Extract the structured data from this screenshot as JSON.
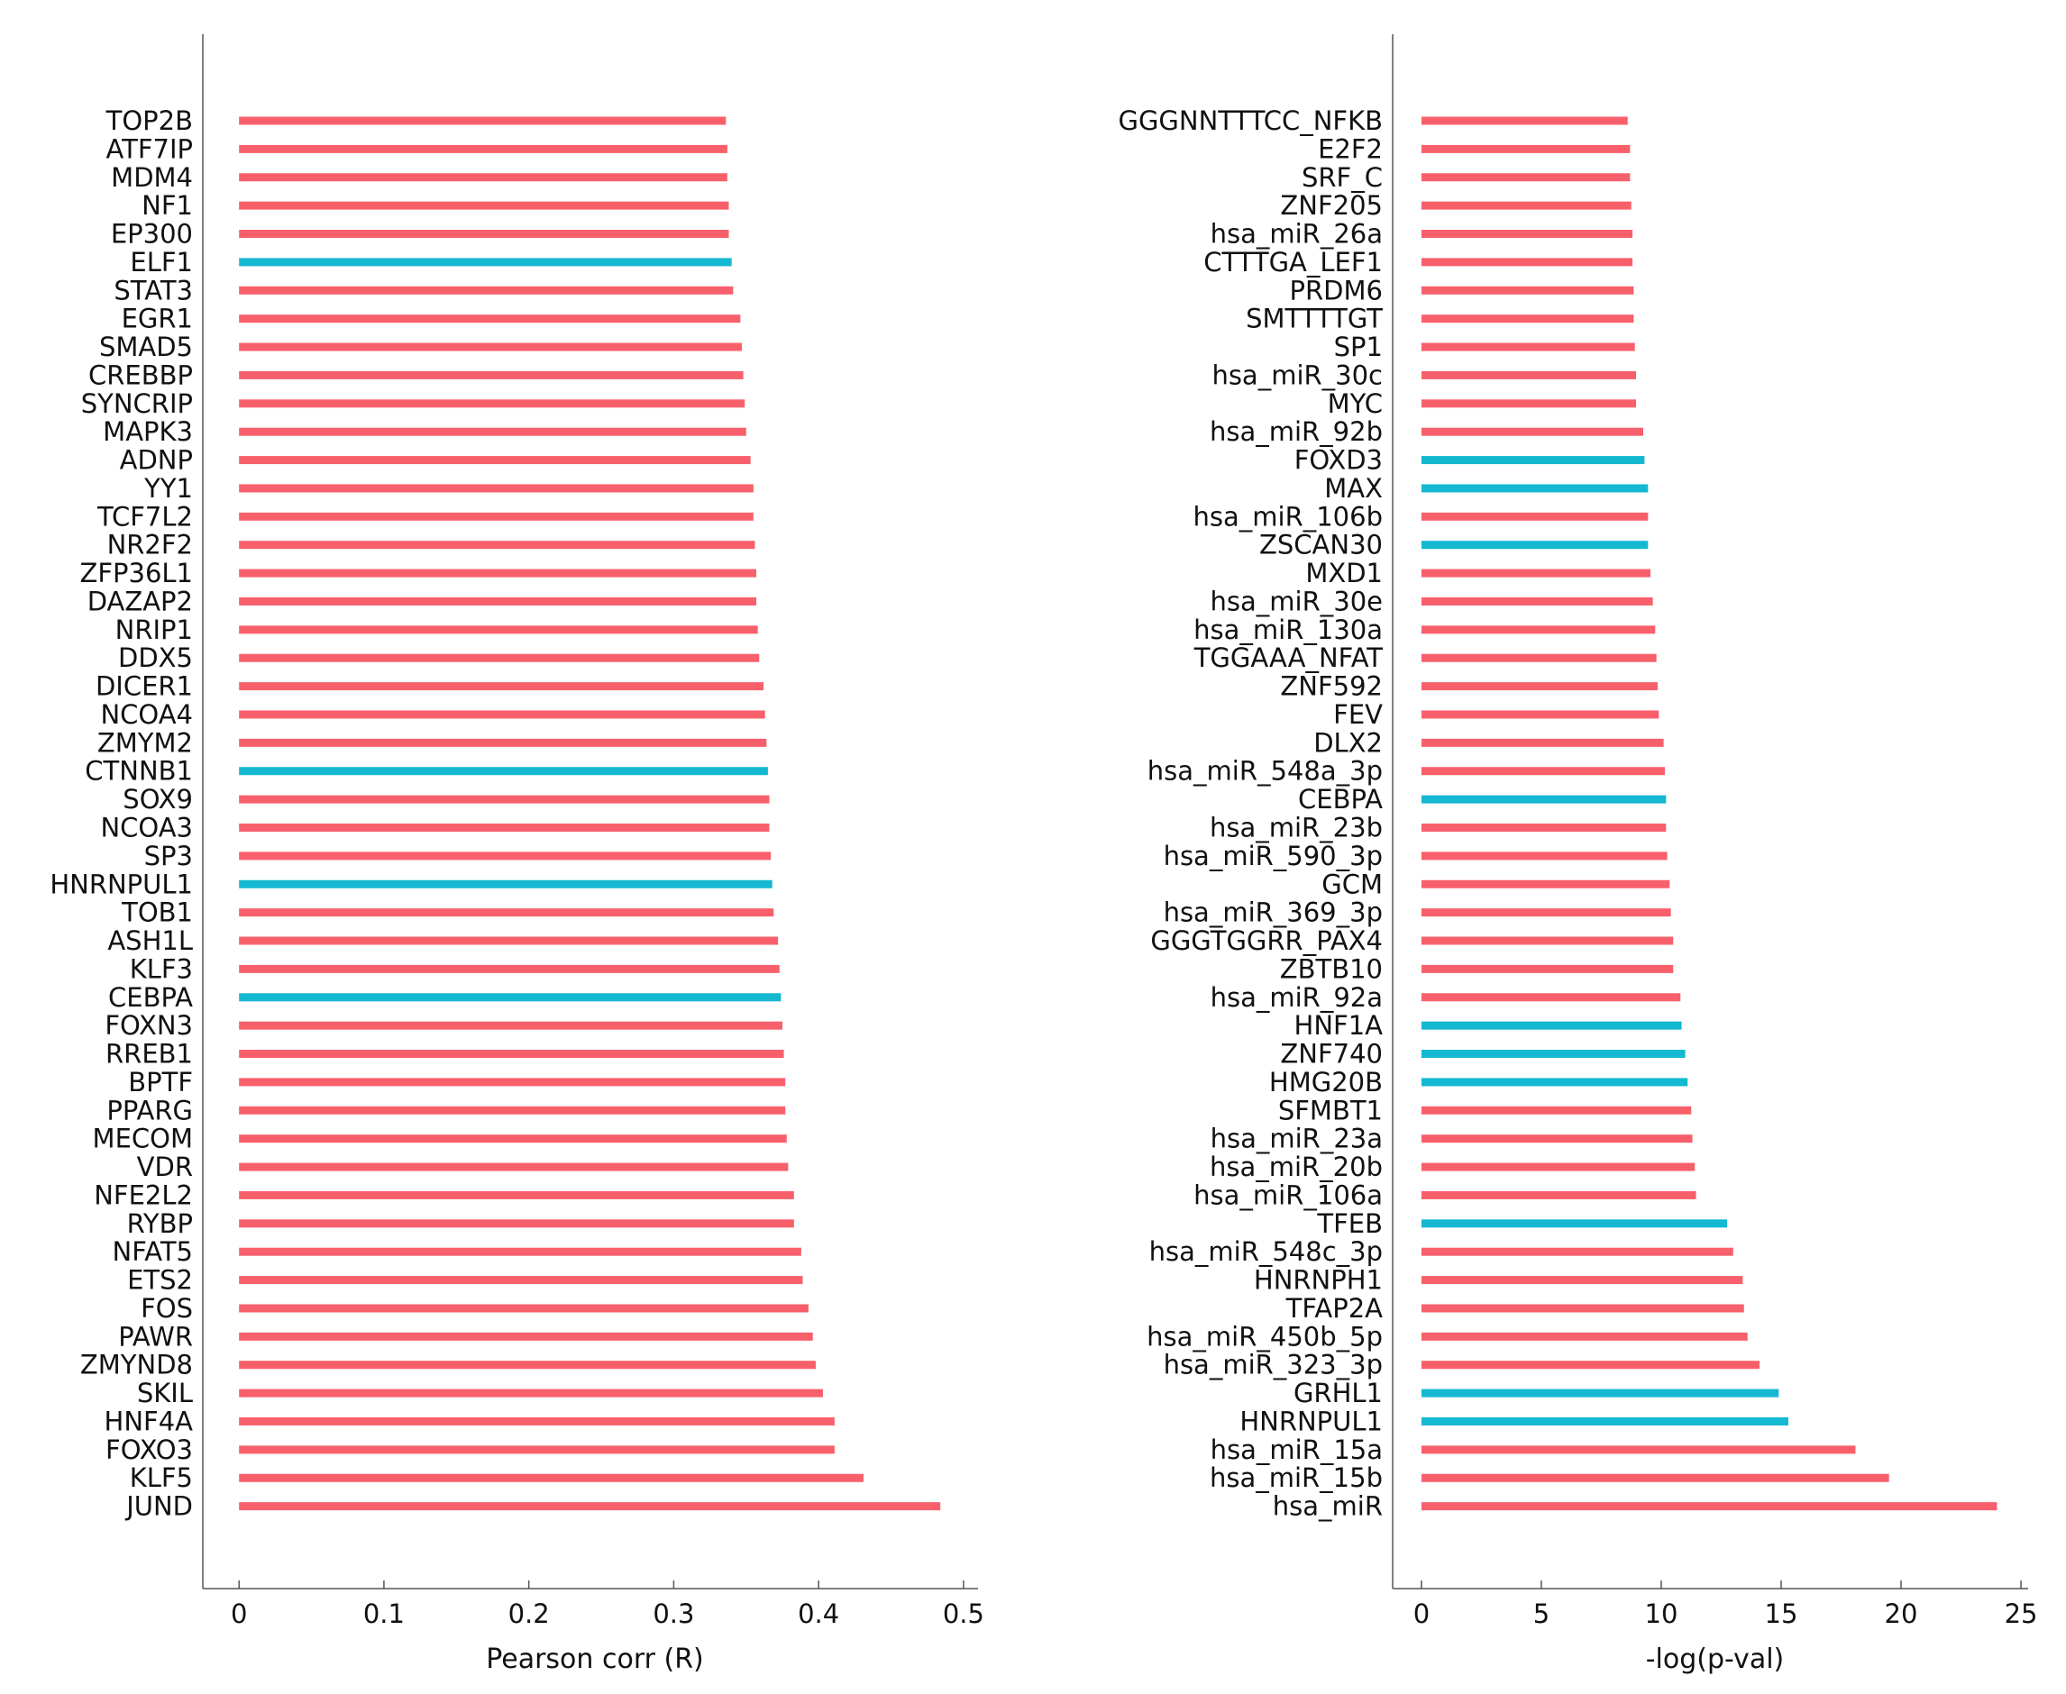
{
  "colors": {
    "red": "#f7606b",
    "cyan": "#14b8d1",
    "axis": "#555555"
  },
  "chart_data": [
    {
      "type": "bar",
      "orientation": "horizontal",
      "xlabel": "Pearson corr (R)",
      "xlim": [
        -0.025,
        0.51
      ],
      "xticks": [
        0,
        0.1,
        0.2,
        0.3,
        0.4,
        0.5
      ],
      "xtick_labels": [
        "0",
        "0.1",
        "0.2",
        "0.3",
        "0.4",
        "0.5"
      ],
      "categories": [
        "TOP2B",
        "ATF7IP",
        "MDM4",
        "NF1",
        "EP300",
        "ELF1",
        "STAT3",
        "EGR1",
        "SMAD5",
        "CREBBP",
        "SYNCRIP",
        "MAPK3",
        "ADNP",
        "YY1",
        "TCF7L2",
        "NR2F2",
        "ZFP36L1",
        "DAZAP2",
        "NRIP1",
        "DDX5",
        "DICER1",
        "NCOA4",
        "ZMYM2",
        "CTNNB1",
        "SOX9",
        "NCOA3",
        "SP3",
        "HNRNPUL1",
        "TOB1",
        "ASH1L",
        "KLF3",
        "CEBPA",
        "FOXN3",
        "RREB1",
        "BPTF",
        "PPARG",
        "MECOM",
        "VDR",
        "NFE2L2",
        "RYBP",
        "NFAT5",
        "ETS2",
        "FOS",
        "PAWR",
        "ZMYND8",
        "SKIL",
        "HNF4A",
        "FOXO3",
        "KLF5",
        "JUND"
      ],
      "values": [
        0.336,
        0.337,
        0.337,
        0.338,
        0.338,
        0.34,
        0.341,
        0.346,
        0.347,
        0.348,
        0.349,
        0.35,
        0.353,
        0.355,
        0.355,
        0.356,
        0.357,
        0.357,
        0.358,
        0.359,
        0.362,
        0.363,
        0.364,
        0.365,
        0.366,
        0.366,
        0.367,
        0.368,
        0.369,
        0.372,
        0.373,
        0.374,
        0.375,
        0.376,
        0.377,
        0.377,
        0.378,
        0.379,
        0.383,
        0.383,
        0.388,
        0.389,
        0.393,
        0.396,
        0.398,
        0.403,
        0.411,
        0.411,
        0.431,
        0.484
      ],
      "groups": [
        "red",
        "red",
        "red",
        "red",
        "red",
        "cyan",
        "red",
        "red",
        "red",
        "red",
        "red",
        "red",
        "red",
        "red",
        "red",
        "red",
        "red",
        "red",
        "red",
        "red",
        "red",
        "red",
        "red",
        "cyan",
        "red",
        "red",
        "red",
        "cyan",
        "red",
        "red",
        "red",
        "cyan",
        "red",
        "red",
        "red",
        "red",
        "red",
        "red",
        "red",
        "red",
        "red",
        "red",
        "red",
        "red",
        "red",
        "red",
        "red",
        "red",
        "red",
        "red"
      ]
    },
    {
      "type": "bar",
      "orientation": "horizontal",
      "xlabel": "-log(p-val)",
      "xlim": [
        -1.2,
        25.3
      ],
      "xticks": [
        0,
        5,
        10,
        15,
        20,
        25
      ],
      "xtick_labels": [
        "0",
        "5",
        "10",
        "15",
        "20",
        "25"
      ],
      "categories": [
        "GGGNNTTTCC_NFKB",
        "E2F2",
        "SRF_C",
        "ZNF205",
        "hsa_miR_26a",
        "CTTTGA_LEF1",
        "PRDM6",
        "SMTTTTGT",
        "SP1",
        "hsa_miR_30c",
        "MYC",
        "hsa_miR_92b",
        "FOXD3",
        "MAX",
        "hsa_miR_106b",
        "ZSCAN30",
        "MXD1",
        "hsa_miR_30e",
        "hsa_miR_130a",
        "TGGAAA_NFAT",
        "ZNF592",
        "FEV",
        "DLX2",
        "hsa_miR_548a_3p",
        "CEBPA",
        "hsa_miR_23b",
        "hsa_miR_590_3p",
        "GCM",
        "hsa_miR_369_3p",
        "GGGTGGRR_PAX4",
        "ZBTB10",
        "hsa_miR_92a",
        "HNF1A",
        "ZNF740",
        "HMG20B",
        "SFMBT1",
        "hsa_miR_23a",
        "hsa_miR_20b",
        "hsa_miR_106a",
        "TFEB",
        "hsa_miR_548c_3p",
        "HNRNPH1",
        "TFAP2A",
        "hsa_miR_450b_5p",
        "hsa_miR_323_3p",
        "GRHL1",
        "HNRNPUL1",
        "hsa_miR_15a",
        "hsa_miR_15b",
        "hsa_miR"
      ],
      "values": [
        8.6,
        8.7,
        8.7,
        8.75,
        8.8,
        8.8,
        8.85,
        8.85,
        8.9,
        8.95,
        8.95,
        9.25,
        9.3,
        9.45,
        9.45,
        9.45,
        9.55,
        9.65,
        9.75,
        9.8,
        9.85,
        9.9,
        10.1,
        10.15,
        10.2,
        10.2,
        10.25,
        10.35,
        10.4,
        10.5,
        10.5,
        10.8,
        10.85,
        11.0,
        11.1,
        11.25,
        11.3,
        11.4,
        11.45,
        12.75,
        13.0,
        13.4,
        13.45,
        13.6,
        14.1,
        14.9,
        15.3,
        18.1,
        19.5,
        24.0
      ],
      "groups": [
        "red",
        "red",
        "red",
        "red",
        "red",
        "red",
        "red",
        "red",
        "red",
        "red",
        "red",
        "red",
        "cyan",
        "cyan",
        "red",
        "cyan",
        "red",
        "red",
        "red",
        "red",
        "red",
        "red",
        "red",
        "red",
        "cyan",
        "red",
        "red",
        "red",
        "red",
        "red",
        "red",
        "red",
        "cyan",
        "cyan",
        "cyan",
        "red",
        "red",
        "red",
        "red",
        "cyan",
        "red",
        "red",
        "red",
        "red",
        "red",
        "cyan",
        "cyan",
        "red",
        "red",
        "red"
      ]
    }
  ]
}
